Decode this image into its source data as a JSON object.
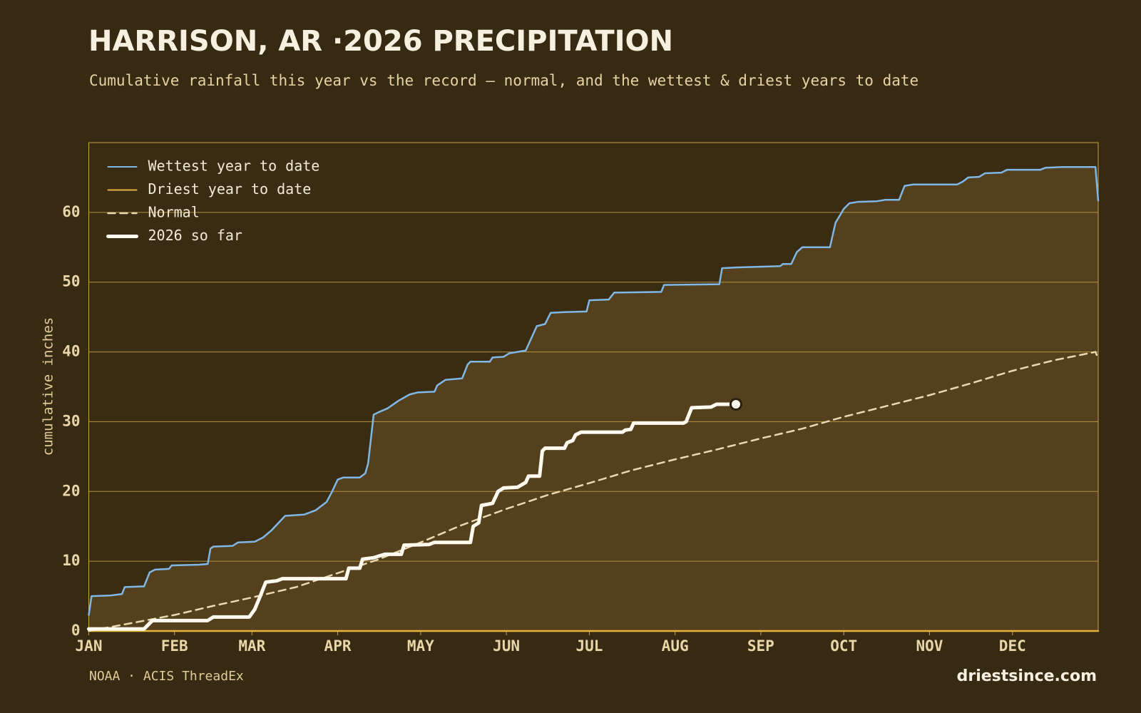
{
  "chart_data": {
    "type": "line",
    "title": "HARRISON, AR ·2026 PRECIPITATION",
    "subtitle": "Cumulative rainfall this year vs the record — normal, and the wettest & driest years to date",
    "y_label": "cumulative inches",
    "source": "NOAA · ACIS ThreadEx",
    "site": "driestsince.com",
    "xlim": [
      0,
      365
    ],
    "xticks": [
      {
        "value": 0,
        "label": "JAN"
      },
      {
        "value": 31,
        "label": "FEB"
      },
      {
        "value": 59,
        "label": "MAR"
      },
      {
        "value": 90,
        "label": "APR"
      },
      {
        "value": 120,
        "label": "MAY"
      },
      {
        "value": 151,
        "label": "JUN"
      },
      {
        "value": 181,
        "label": "JUL"
      },
      {
        "value": 212,
        "label": "AUG"
      },
      {
        "value": 243,
        "label": "SEP"
      },
      {
        "value": 273,
        "label": "OCT"
      },
      {
        "value": 304,
        "label": "NOV"
      },
      {
        "value": 334,
        "label": "DEC"
      }
    ],
    "ylim": [
      0,
      70
    ],
    "yticks": [
      0,
      10,
      20,
      30,
      40,
      50,
      60
    ],
    "grid": true,
    "legend": "upper left",
    "range_fill": "#54401c",
    "series": [
      {
        "name": "Wettest year to date",
        "color": "#7fb8e6",
        "style": "solid",
        "x": [
          0,
          1,
          8,
          12,
          13,
          20,
          22,
          24,
          29,
          30,
          40,
          43,
          44,
          45,
          52,
          54,
          60,
          63,
          66,
          71,
          78,
          82,
          86,
          88,
          90,
          92,
          98,
          100,
          101,
          103,
          105,
          108,
          112,
          116,
          119,
          125,
          126,
          129,
          135,
          137,
          138,
          145,
          146,
          150,
          152,
          158,
          162,
          165,
          167,
          172,
          180,
          181,
          188,
          190,
          207,
          208,
          228,
          229,
          234,
          250,
          251,
          254,
          256,
          258,
          268,
          270,
          273,
          275,
          278,
          285,
          288,
          293,
          295,
          298,
          314,
          316,
          318,
          322,
          324,
          330,
          332,
          344,
          346,
          352,
          364,
          365
        ],
        "values": [
          2.3,
          5.0,
          5.1,
          5.3,
          6.3,
          6.4,
          8.4,
          8.8,
          8.9,
          9.4,
          9.5,
          9.6,
          11.8,
          12.1,
          12.2,
          12.7,
          12.8,
          13.4,
          14.4,
          16.5,
          16.7,
          17.3,
          18.5,
          20.0,
          21.7,
          22.0,
          22.0,
          22.6,
          24.0,
          31.0,
          31.4,
          31.9,
          33.0,
          33.9,
          34.2,
          34.3,
          35.2,
          36.0,
          36.2,
          38.2,
          38.6,
          38.6,
          39.2,
          39.3,
          39.8,
          40.2,
          43.7,
          44.0,
          45.6,
          45.7,
          45.8,
          47.4,
          47.5,
          48.5,
          48.6,
          49.6,
          49.7,
          52.0,
          52.1,
          52.3,
          52.6,
          52.6,
          54.3,
          55.0,
          55.0,
          58.5,
          60.5,
          61.3,
          61.5,
          61.6,
          61.8,
          61.8,
          63.8,
          64.0,
          64.0,
          64.4,
          65.0,
          65.1,
          65.6,
          65.7,
          66.1,
          66.1,
          66.4,
          66.5,
          66.5,
          61.7
        ]
      },
      {
        "name": "Driest year to date",
        "color": "#e6b43c",
        "style": "solid",
        "x": [
          0,
          120,
          240,
          365
        ],
        "values": [
          0,
          0,
          0,
          0
        ]
      },
      {
        "name": "Normal",
        "color": "#e8d9b0",
        "style": "dashed",
        "x": [
          0,
          15,
          31,
          45,
          59,
          75,
          90,
          105,
          120,
          135,
          151,
          166,
          181,
          196,
          212,
          227,
          243,
          258,
          273,
          288,
          304,
          319,
          334,
          349,
          364,
          365
        ],
        "values": [
          0,
          1.1,
          2.3,
          3.6,
          4.8,
          6.3,
          8.3,
          10.3,
          12.7,
          15.2,
          17.5,
          19.5,
          21.2,
          23.0,
          24.6,
          26.0,
          27.6,
          29.0,
          30.7,
          32.2,
          33.8,
          35.5,
          37.3,
          38.8,
          40.0,
          39.0
        ]
      },
      {
        "name": "2026 so far",
        "color": "#fffaf0",
        "style": "bold",
        "x": [
          0,
          20,
          23,
          43,
          45,
          58,
          60,
          62,
          64,
          68,
          70,
          93,
          94,
          98,
          99,
          103,
          107,
          113,
          114,
          123,
          125,
          138,
          139,
          141,
          142,
          146,
          148,
          150,
          155,
          158,
          159,
          163,
          164,
          165,
          172,
          173,
          175,
          176,
          178,
          193,
          194,
          196,
          197,
          215,
          216,
          218,
          225,
          227,
          234
        ],
        "values": [
          0.3,
          0.3,
          1.5,
          1.5,
          2.0,
          2.0,
          3.1,
          5.0,
          7.0,
          7.2,
          7.5,
          7.5,
          9.0,
          9.0,
          10.3,
          10.5,
          11.0,
          11.0,
          12.3,
          12.4,
          12.7,
          12.7,
          15.0,
          15.5,
          18.0,
          18.3,
          20.0,
          20.5,
          20.6,
          21.3,
          22.2,
          22.2,
          25.8,
          26.2,
          26.2,
          27.0,
          27.3,
          28.1,
          28.5,
          28.5,
          28.8,
          28.9,
          29.8,
          29.8,
          30.0,
          32.0,
          32.1,
          32.5,
          32.5
        ]
      }
    ]
  }
}
